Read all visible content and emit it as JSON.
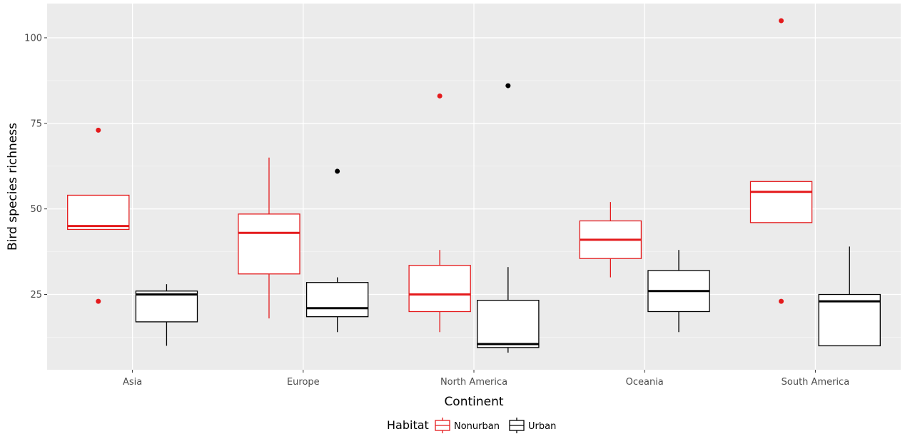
{
  "chart_data": {
    "type": "boxplot",
    "xlabel": "Continent",
    "ylabel": "Bird species richness",
    "categories": [
      "Asia",
      "Europe",
      "North America",
      "Oceania",
      "South America"
    ],
    "y_ticks": [
      25,
      50,
      75,
      100
    ],
    "ylim": [
      3,
      110
    ],
    "grid": true,
    "legend": {
      "title": "Habitat",
      "position": "bottom",
      "entries": [
        "Nonurban",
        "Urban"
      ]
    },
    "series": [
      {
        "name": "Nonurban",
        "color": "#e41a1c",
        "boxes": [
          {
            "category": "Asia",
            "whisker_low": 44,
            "q1": 44,
            "median": 45,
            "q3": 54,
            "whisker_high": 54,
            "outliers": [
              73,
              23
            ]
          },
          {
            "category": "Europe",
            "whisker_low": 18,
            "q1": 31,
            "median": 43,
            "q3": 48.5,
            "whisker_high": 65,
            "outliers": []
          },
          {
            "category": "North America",
            "whisker_low": 14,
            "q1": 20,
            "median": 25,
            "q3": 33.5,
            "whisker_high": 38,
            "outliers": [
              83
            ]
          },
          {
            "category": "Oceania",
            "whisker_low": 30,
            "q1": 35.5,
            "median": 41,
            "q3": 46.5,
            "whisker_high": 52,
            "outliers": []
          },
          {
            "category": "South America",
            "whisker_low": 46,
            "q1": 46,
            "median": 55,
            "q3": 58,
            "whisker_high": 58,
            "outliers": [
              105,
              23
            ]
          }
        ]
      },
      {
        "name": "Urban",
        "color": "#000000",
        "boxes": [
          {
            "category": "Asia",
            "whisker_low": 10,
            "q1": 17,
            "median": 25,
            "q3": 26,
            "whisker_high": 28,
            "outliers": []
          },
          {
            "category": "Europe",
            "whisker_low": 14,
            "q1": 18.5,
            "median": 21,
            "q3": 28.5,
            "whisker_high": 30,
            "outliers": [
              61
            ]
          },
          {
            "category": "North America",
            "whisker_low": 8,
            "q1": 9.5,
            "median": 10.5,
            "q3": 23.3,
            "whisker_high": 33,
            "outliers": [
              86
            ]
          },
          {
            "category": "Oceania",
            "whisker_low": 14,
            "q1": 20,
            "median": 26,
            "q3": 32,
            "whisker_high": 38,
            "outliers": []
          },
          {
            "category": "South America",
            "whisker_low": 10,
            "q1": 10,
            "median": 23,
            "q3": 25,
            "whisker_high": 39,
            "outliers": []
          }
        ]
      }
    ]
  }
}
